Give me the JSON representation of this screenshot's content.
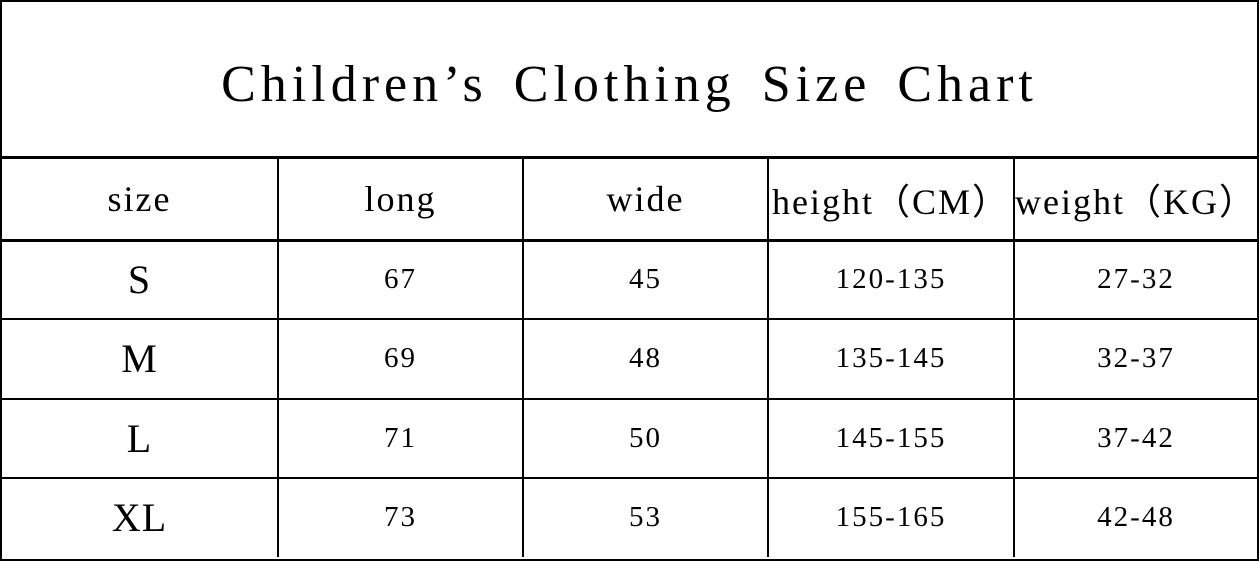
{
  "title": "Children’s Clothing Size Chart",
  "colors": {
    "background": "#ffffff",
    "text": "#000000",
    "border": "#000000"
  },
  "table": {
    "columns": [
      "size",
      "long",
      "wide",
      "height（CM）",
      "weight（KG）"
    ],
    "rows": [
      [
        "S",
        "67",
        "45",
        "120-135",
        "27-32"
      ],
      [
        "M",
        "69",
        "48",
        "135-145",
        "32-37"
      ],
      [
        "L",
        "71",
        "50",
        "145-155",
        "37-42"
      ],
      [
        "XL",
        "73",
        "53",
        "155-165",
        "42-48"
      ]
    ]
  }
}
